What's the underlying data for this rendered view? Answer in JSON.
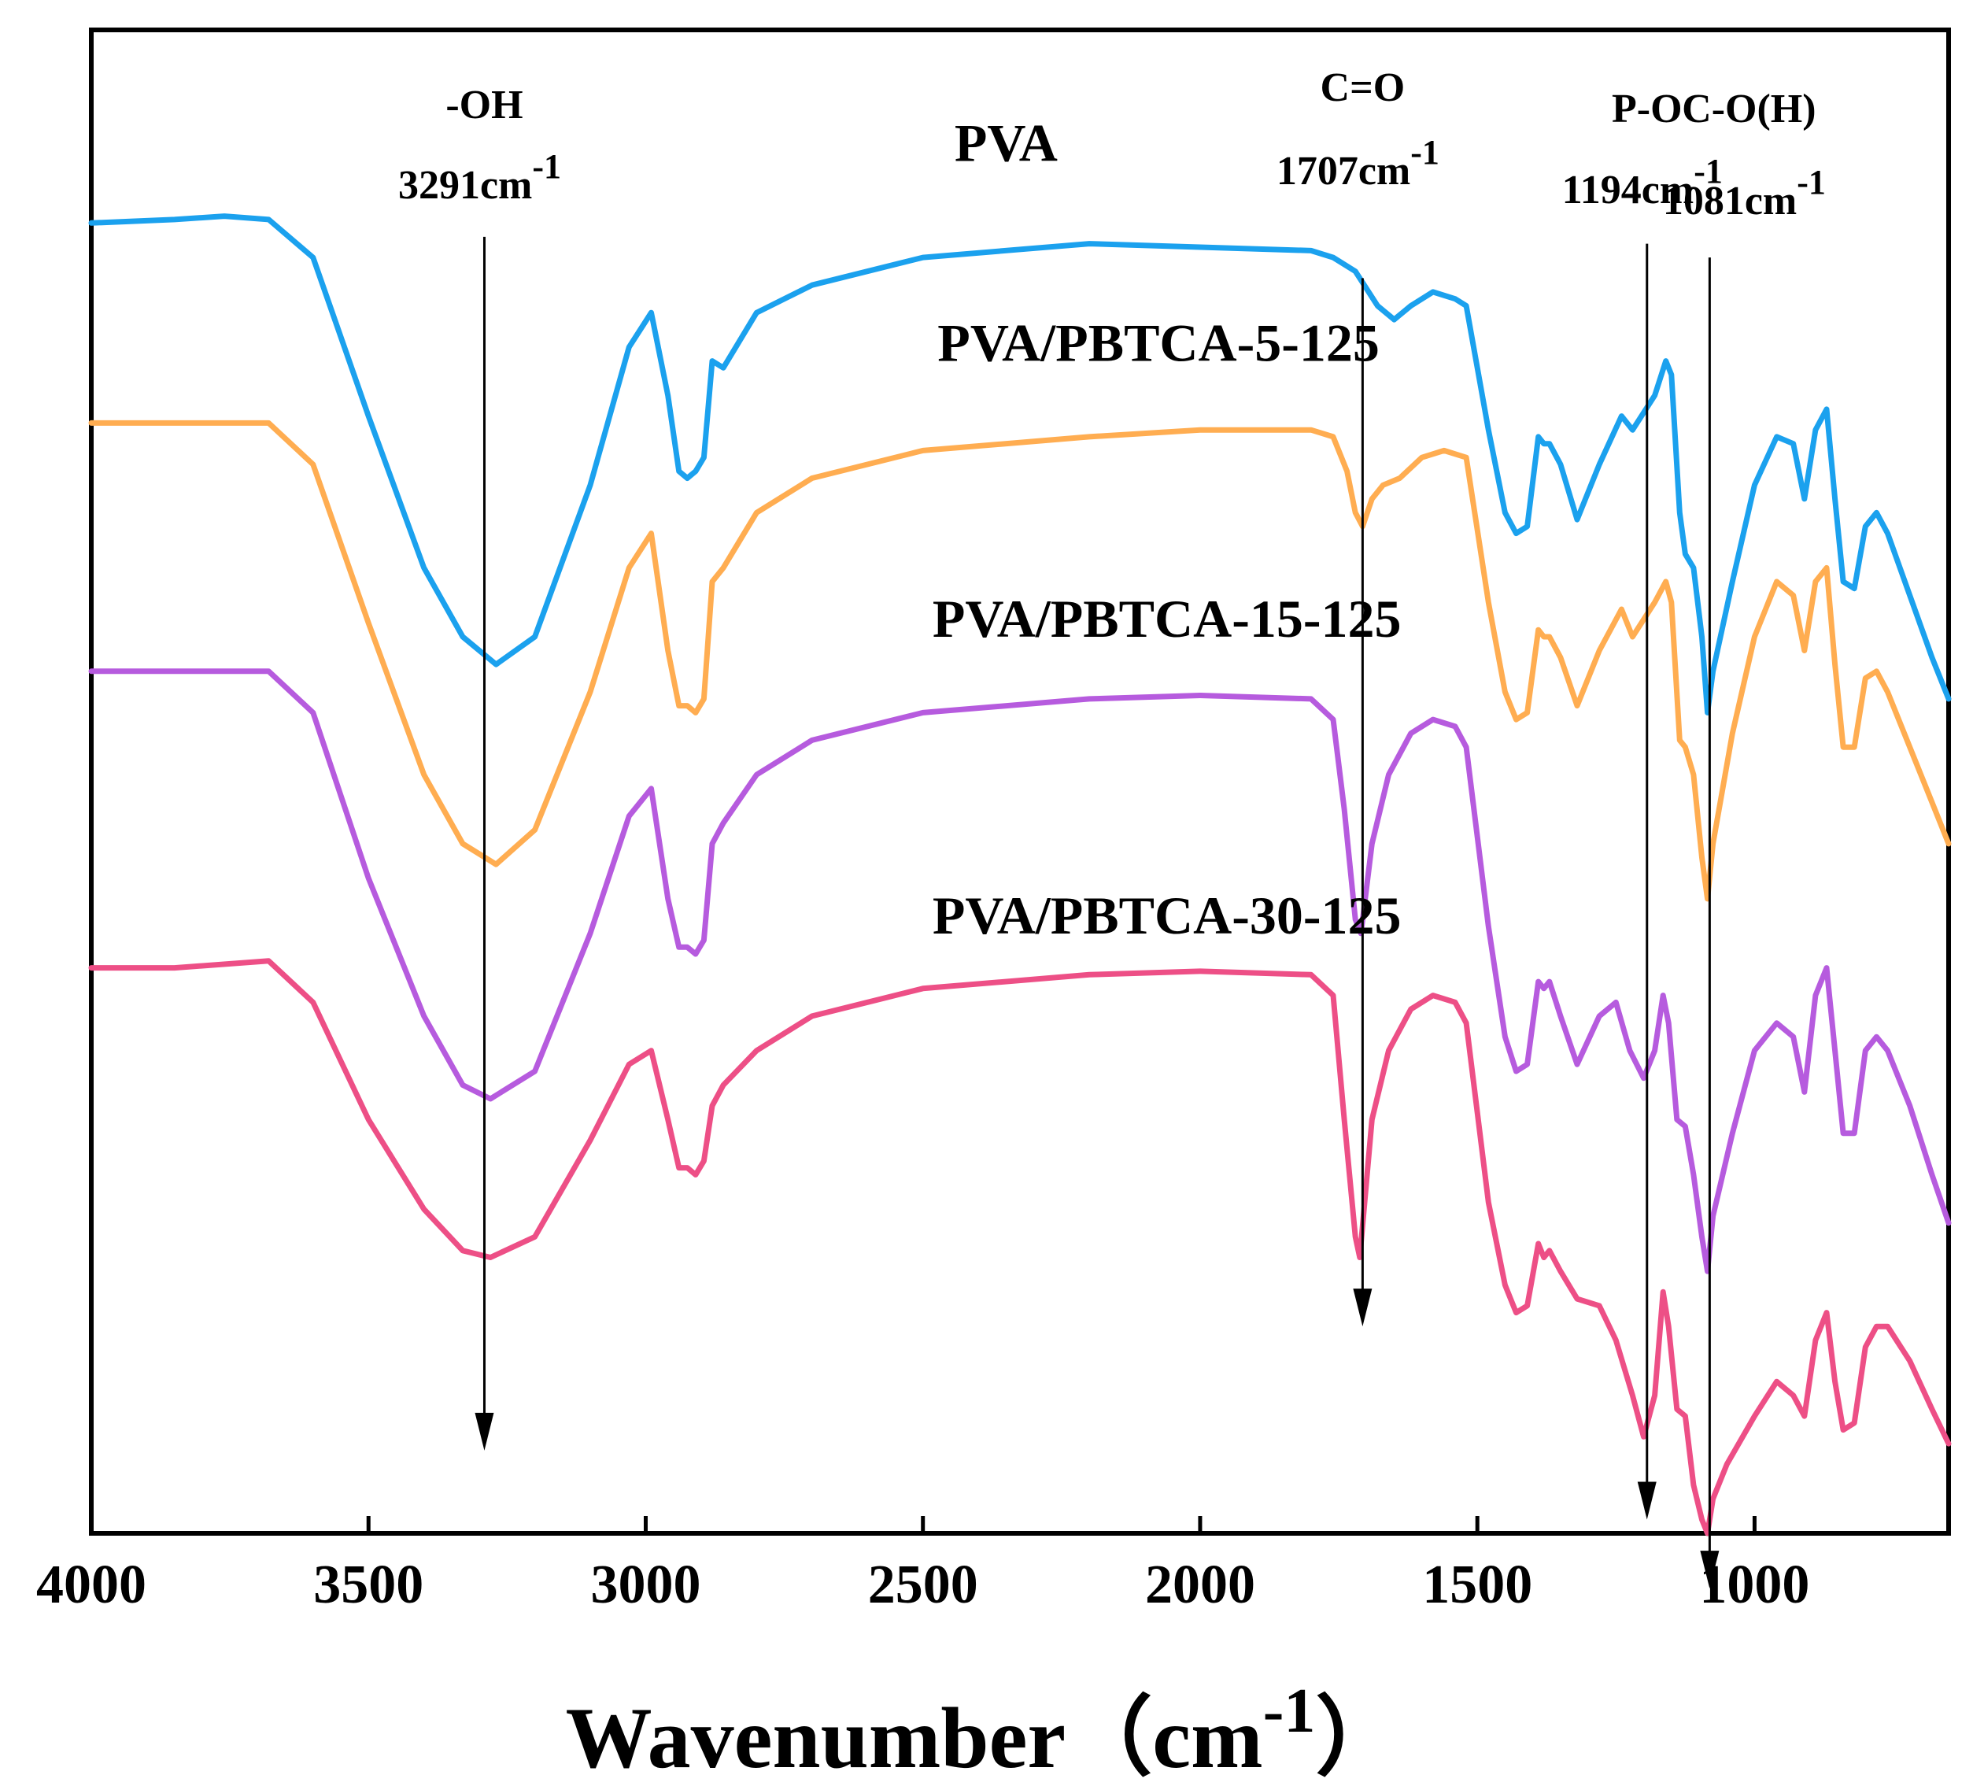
{
  "chart_data": {
    "type": "line",
    "title": "",
    "xlabel": "Wavenumber",
    "xlabel_unit_base": "cm",
    "xlabel_unit_exp": "-1",
    "ylabel": "",
    "xlim": [
      4000,
      650
    ],
    "x_reversed": true,
    "xticks": [
      4000,
      3500,
      3000,
      2500,
      2000,
      1500,
      1000
    ],
    "xtick_labels": [
      "4000",
      "3500",
      "3000",
      "2500",
      "2000",
      "1500",
      "1000"
    ],
    "y_units": "transmittance (arbitrary, offset traces)",
    "ylim": [
      -1.9,
      0.28
    ],
    "grid": false,
    "legend": "none (traces labeled directly)",
    "series": [
      {
        "name": "PVA",
        "label": "PVA",
        "color": "#1ba1ee",
        "label_anchor": [
          2350,
          0.09
        ],
        "points": [
          [
            4000,
            0
          ],
          [
            3850,
            0.005
          ],
          [
            3760,
            0.01
          ],
          [
            3680,
            0.005
          ],
          [
            3600,
            -0.05
          ],
          [
            3500,
            -0.28
          ],
          [
            3400,
            -0.5
          ],
          [
            3330,
            -0.6
          ],
          [
            3270,
            -0.64
          ],
          [
            3200,
            -0.6
          ],
          [
            3100,
            -0.38
          ],
          [
            3030,
            -0.18
          ],
          [
            2990,
            -0.13
          ],
          [
            2960,
            -0.25
          ],
          [
            2940,
            -0.36
          ],
          [
            2925,
            -0.37
          ],
          [
            2910,
            -0.36
          ],
          [
            2895,
            -0.34
          ],
          [
            2880,
            -0.2
          ],
          [
            2860,
            -0.21
          ],
          [
            2800,
            -0.13
          ],
          [
            2700,
            -0.09
          ],
          [
            2500,
            -0.05
          ],
          [
            2200,
            -0.03
          ],
          [
            2000,
            -0.035
          ],
          [
            1800,
            -0.04
          ],
          [
            1760,
            -0.05
          ],
          [
            1720,
            -0.07
          ],
          [
            1680,
            -0.12
          ],
          [
            1650,
            -0.14
          ],
          [
            1620,
            -0.12
          ],
          [
            1580,
            -0.1
          ],
          [
            1540,
            -0.11
          ],
          [
            1520,
            -0.12
          ],
          [
            1480,
            -0.3
          ],
          [
            1450,
            -0.42
          ],
          [
            1430,
            -0.45
          ],
          [
            1410,
            -0.44
          ],
          [
            1390,
            -0.31
          ],
          [
            1380,
            -0.32
          ],
          [
            1370,
            -0.32
          ],
          [
            1350,
            -0.35
          ],
          [
            1320,
            -0.43
          ],
          [
            1280,
            -0.35
          ],
          [
            1240,
            -0.28
          ],
          [
            1220,
            -0.3
          ],
          [
            1180,
            -0.25
          ],
          [
            1160,
            -0.2
          ],
          [
            1150,
            -0.22
          ],
          [
            1135,
            -0.42
          ],
          [
            1125,
            -0.48
          ],
          [
            1110,
            -0.5
          ],
          [
            1095,
            -0.6
          ],
          [
            1085,
            -0.71
          ],
          [
            1075,
            -0.65
          ],
          [
            1040,
            -0.52
          ],
          [
            1000,
            -0.38
          ],
          [
            960,
            -0.31
          ],
          [
            930,
            -0.32
          ],
          [
            910,
            -0.4
          ],
          [
            890,
            -0.3
          ],
          [
            870,
            -0.27
          ],
          [
            855,
            -0.4
          ],
          [
            840,
            -0.52
          ],
          [
            820,
            -0.53
          ],
          [
            800,
            -0.44
          ],
          [
            780,
            -0.42
          ],
          [
            760,
            -0.45
          ],
          [
            720,
            -0.54
          ],
          [
            680,
            -0.63
          ],
          [
            650,
            -0.69
          ]
        ]
      },
      {
        "name": "PVA/PBTCA-5-125",
        "label": "PVA/PBTCA-5-125",
        "color": "#ffad51",
        "label_anchor": [
          2075,
          -0.2
        ],
        "points": [
          [
            4000,
            -0.29
          ],
          [
            3850,
            -0.29
          ],
          [
            3680,
            -0.29
          ],
          [
            3600,
            -0.35
          ],
          [
            3500,
            -0.58
          ],
          [
            3400,
            -0.8
          ],
          [
            3330,
            -0.9
          ],
          [
            3270,
            -0.93
          ],
          [
            3200,
            -0.88
          ],
          [
            3100,
            -0.68
          ],
          [
            3030,
            -0.5
          ],
          [
            2990,
            -0.45
          ],
          [
            2960,
            -0.62
          ],
          [
            2940,
            -0.7
          ],
          [
            2925,
            -0.7
          ],
          [
            2910,
            -0.71
          ],
          [
            2895,
            -0.69
          ],
          [
            2880,
            -0.52
          ],
          [
            2860,
            -0.5
          ],
          [
            2800,
            -0.42
          ],
          [
            2700,
            -0.37
          ],
          [
            2500,
            -0.33
          ],
          [
            2200,
            -0.31
          ],
          [
            2000,
            -0.3
          ],
          [
            1800,
            -0.3
          ],
          [
            1760,
            -0.31
          ],
          [
            1735,
            -0.36
          ],
          [
            1720,
            -0.42
          ],
          [
            1707,
            -0.44
          ],
          [
            1690,
            -0.4
          ],
          [
            1670,
            -0.38
          ],
          [
            1640,
            -0.37
          ],
          [
            1600,
            -0.34
          ],
          [
            1560,
            -0.33
          ],
          [
            1520,
            -0.34
          ],
          [
            1480,
            -0.55
          ],
          [
            1450,
            -0.68
          ],
          [
            1430,
            -0.72
          ],
          [
            1410,
            -0.71
          ],
          [
            1390,
            -0.59
          ],
          [
            1380,
            -0.6
          ],
          [
            1370,
            -0.6
          ],
          [
            1350,
            -0.63
          ],
          [
            1320,
            -0.7
          ],
          [
            1280,
            -0.62
          ],
          [
            1240,
            -0.56
          ],
          [
            1220,
            -0.6
          ],
          [
            1180,
            -0.55
          ],
          [
            1160,
            -0.52
          ],
          [
            1150,
            -0.55
          ],
          [
            1135,
            -0.75
          ],
          [
            1125,
            -0.76
          ],
          [
            1110,
            -0.8
          ],
          [
            1095,
            -0.92
          ],
          [
            1085,
            -0.98
          ],
          [
            1075,
            -0.9
          ],
          [
            1040,
            -0.74
          ],
          [
            1000,
            -0.6
          ],
          [
            960,
            -0.52
          ],
          [
            930,
            -0.54
          ],
          [
            910,
            -0.62
          ],
          [
            890,
            -0.52
          ],
          [
            870,
            -0.5
          ],
          [
            855,
            -0.64
          ],
          [
            840,
            -0.76
          ],
          [
            820,
            -0.76
          ],
          [
            800,
            -0.66
          ],
          [
            780,
            -0.65
          ],
          [
            760,
            -0.68
          ],
          [
            720,
            -0.76
          ],
          [
            680,
            -0.84
          ],
          [
            650,
            -0.9
          ]
        ]
      },
      {
        "name": "PVA/PBTCA-15-125",
        "label": "PVA/PBTCA-15-125",
        "color": "#b65bde",
        "label_anchor": [
          2060,
          -0.6
        ],
        "points": [
          [
            4000,
            -0.65
          ],
          [
            3850,
            -0.65
          ],
          [
            3680,
            -0.65
          ],
          [
            3600,
            -0.71
          ],
          [
            3500,
            -0.95
          ],
          [
            3400,
            -1.15
          ],
          [
            3330,
            -1.25
          ],
          [
            3280,
            -1.27
          ],
          [
            3200,
            -1.23
          ],
          [
            3100,
            -1.03
          ],
          [
            3030,
            -0.86
          ],
          [
            2990,
            -0.82
          ],
          [
            2960,
            -0.98
          ],
          [
            2940,
            -1.05
          ],
          [
            2925,
            -1.05
          ],
          [
            2910,
            -1.06
          ],
          [
            2895,
            -1.04
          ],
          [
            2880,
            -0.9
          ],
          [
            2860,
            -0.87
          ],
          [
            2800,
            -0.8
          ],
          [
            2700,
            -0.75
          ],
          [
            2500,
            -0.71
          ],
          [
            2200,
            -0.69
          ],
          [
            2000,
            -0.685
          ],
          [
            1800,
            -0.69
          ],
          [
            1760,
            -0.72
          ],
          [
            1740,
            -0.85
          ],
          [
            1720,
            -1.01
          ],
          [
            1710,
            -1.03
          ],
          [
            1690,
            -0.9
          ],
          [
            1660,
            -0.8
          ],
          [
            1620,
            -0.74
          ],
          [
            1580,
            -0.72
          ],
          [
            1540,
            -0.73
          ],
          [
            1520,
            -0.76
          ],
          [
            1480,
            -1.02
          ],
          [
            1450,
            -1.18
          ],
          [
            1430,
            -1.23
          ],
          [
            1410,
            -1.22
          ],
          [
            1390,
            -1.1
          ],
          [
            1380,
            -1.11
          ],
          [
            1370,
            -1.1
          ],
          [
            1350,
            -1.15
          ],
          [
            1320,
            -1.22
          ],
          [
            1280,
            -1.15
          ],
          [
            1250,
            -1.13
          ],
          [
            1225,
            -1.2
          ],
          [
            1200,
            -1.24
          ],
          [
            1180,
            -1.2
          ],
          [
            1165,
            -1.12
          ],
          [
            1155,
            -1.16
          ],
          [
            1140,
            -1.3
          ],
          [
            1125,
            -1.31
          ],
          [
            1110,
            -1.38
          ],
          [
            1095,
            -1.47
          ],
          [
            1085,
            -1.52
          ],
          [
            1075,
            -1.44
          ],
          [
            1040,
            -1.32
          ],
          [
            1000,
            -1.2
          ],
          [
            960,
            -1.16
          ],
          [
            930,
            -1.18
          ],
          [
            910,
            -1.26
          ],
          [
            890,
            -1.12
          ],
          [
            870,
            -1.08
          ],
          [
            855,
            -1.2
          ],
          [
            840,
            -1.32
          ],
          [
            820,
            -1.32
          ],
          [
            800,
            -1.2
          ],
          [
            780,
            -1.18
          ],
          [
            760,
            -1.2
          ],
          [
            720,
            -1.28
          ],
          [
            680,
            -1.38
          ],
          [
            650,
            -1.45
          ]
        ]
      },
      {
        "name": "PVA/PBTCA-30-125",
        "label": "PVA/PBTCA-30-125",
        "color": "#ed4f86",
        "label_anchor": [
          2060,
          -1.03
        ],
        "points": [
          [
            4000,
            -1.08
          ],
          [
            3850,
            -1.08
          ],
          [
            3680,
            -1.07
          ],
          [
            3600,
            -1.13
          ],
          [
            3500,
            -1.3
          ],
          [
            3400,
            -1.43
          ],
          [
            3330,
            -1.49
          ],
          [
            3280,
            -1.5
          ],
          [
            3200,
            -1.47
          ],
          [
            3100,
            -1.33
          ],
          [
            3030,
            -1.22
          ],
          [
            2990,
            -1.2
          ],
          [
            2960,
            -1.3
          ],
          [
            2940,
            -1.37
          ],
          [
            2925,
            -1.37
          ],
          [
            2910,
            -1.38
          ],
          [
            2895,
            -1.36
          ],
          [
            2880,
            -1.28
          ],
          [
            2860,
            -1.25
          ],
          [
            2800,
            -1.2
          ],
          [
            2700,
            -1.15
          ],
          [
            2500,
            -1.11
          ],
          [
            2200,
            -1.09
          ],
          [
            2000,
            -1.085
          ],
          [
            1800,
            -1.09
          ],
          [
            1760,
            -1.12
          ],
          [
            1740,
            -1.3
          ],
          [
            1720,
            -1.47
          ],
          [
            1712,
            -1.5
          ],
          [
            1690,
            -1.3
          ],
          [
            1660,
            -1.2
          ],
          [
            1620,
            -1.14
          ],
          [
            1580,
            -1.12
          ],
          [
            1540,
            -1.13
          ],
          [
            1520,
            -1.16
          ],
          [
            1480,
            -1.42
          ],
          [
            1450,
            -1.54
          ],
          [
            1430,
            -1.58
          ],
          [
            1410,
            -1.57
          ],
          [
            1390,
            -1.48
          ],
          [
            1380,
            -1.5
          ],
          [
            1370,
            -1.49
          ],
          [
            1350,
            -1.52
          ],
          [
            1320,
            -1.56
          ],
          [
            1280,
            -1.57
          ],
          [
            1250,
            -1.62
          ],
          [
            1220,
            -1.7
          ],
          [
            1200,
            -1.76
          ],
          [
            1180,
            -1.7
          ],
          [
            1165,
            -1.55
          ],
          [
            1155,
            -1.6
          ],
          [
            1140,
            -1.72
          ],
          [
            1125,
            -1.73
          ],
          [
            1110,
            -1.83
          ],
          [
            1095,
            -1.88
          ],
          [
            1085,
            -1.9
          ],
          [
            1075,
            -1.85
          ],
          [
            1050,
            -1.8
          ],
          [
            1000,
            -1.73
          ],
          [
            960,
            -1.68
          ],
          [
            930,
            -1.7
          ],
          [
            910,
            -1.73
          ],
          [
            890,
            -1.62
          ],
          [
            870,
            -1.58
          ],
          [
            855,
            -1.68
          ],
          [
            840,
            -1.75
          ],
          [
            820,
            -1.74
          ],
          [
            800,
            -1.63
          ],
          [
            780,
            -1.6
          ],
          [
            760,
            -1.6
          ],
          [
            720,
            -1.65
          ],
          [
            680,
            -1.72
          ],
          [
            650,
            -1.77
          ]
        ]
      }
    ],
    "annotations": [
      {
        "group": "OH",
        "group_text": "-OH",
        "value_text": "3291cm",
        "sup": "-1",
        "x": 3291,
        "arrow_top": -0.02,
        "arrow_bottom": -1.78
      },
      {
        "group": "CO",
        "group_text": "C=O",
        "value_text": "1707cm",
        "sup": "-1",
        "x": 1707,
        "arrow_top": -0.08,
        "arrow_bottom": -1.6
      },
      {
        "group": "PO",
        "group_text": "P-O",
        "value_text": "1194cm",
        "sup": "-1",
        "x": 1194,
        "arrow_top": -0.03,
        "arrow_bottom": -1.88
      },
      {
        "group": "COH",
        "group_text": "C-O(H)",
        "value_text": "1081cm",
        "sup": "-1",
        "x": 1081,
        "arrow_top": -0.05,
        "arrow_bottom": -1.98
      }
    ]
  }
}
